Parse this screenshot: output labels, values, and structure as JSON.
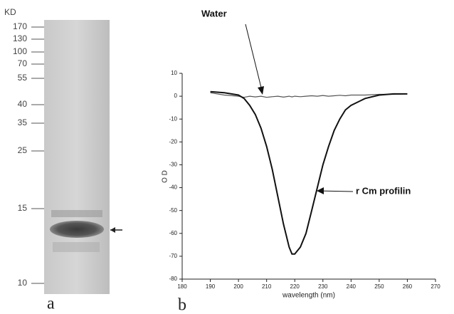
{
  "gel": {
    "unit": "KD",
    "markers": [
      "170",
      "130",
      "100",
      "70",
      "55",
      "40",
      "35",
      "25",
      "15",
      "10"
    ],
    "panel_label": "a"
  },
  "chart_data": {
    "type": "line",
    "panel_label": "b",
    "x_label": "wavelength (nm)",
    "y_label": "O D",
    "annotations": [
      "Water",
      "r Cm profilin"
    ],
    "x": [
      190,
      195,
      200,
      202,
      204,
      206,
      208,
      210,
      212,
      214,
      216,
      218,
      219,
      220,
      222,
      224,
      226,
      228,
      230,
      232,
      234,
      236,
      238,
      240,
      245,
      250,
      255,
      260
    ],
    "series": [
      {
        "name": "Water",
        "color": "#555555",
        "values": [
          1.5,
          0.5,
          0,
          -0.5,
          0,
          -0.3,
          0,
          -0.5,
          -0.2,
          0,
          -0.4,
          0,
          -0.3,
          0,
          -0.2,
          0,
          0.2,
          0,
          0.3,
          0,
          0.2,
          0.4,
          0.2,
          0.5,
          0.5,
          0.8,
          0.8,
          1
        ]
      },
      {
        "name": "r Cm profilin",
        "color": "#111111",
        "values": [
          2,
          1.5,
          0.5,
          -1,
          -4,
          -8,
          -14,
          -22,
          -32,
          -44,
          -56,
          -66,
          -69,
          -69,
          -66,
          -60,
          -50,
          -40,
          -30,
          -22,
          -15,
          -10,
          -6,
          -4,
          -1,
          0.5,
          1,
          1
        ]
      }
    ],
    "xlim": [
      180,
      270
    ],
    "ylim": [
      -80,
      10
    ],
    "xticks": [
      180,
      190,
      200,
      210,
      220,
      230,
      240,
      250,
      260,
      270
    ],
    "yticks": [
      10,
      0,
      -10,
      -20,
      -30,
      -40,
      -50,
      -60,
      -70,
      -80
    ]
  }
}
